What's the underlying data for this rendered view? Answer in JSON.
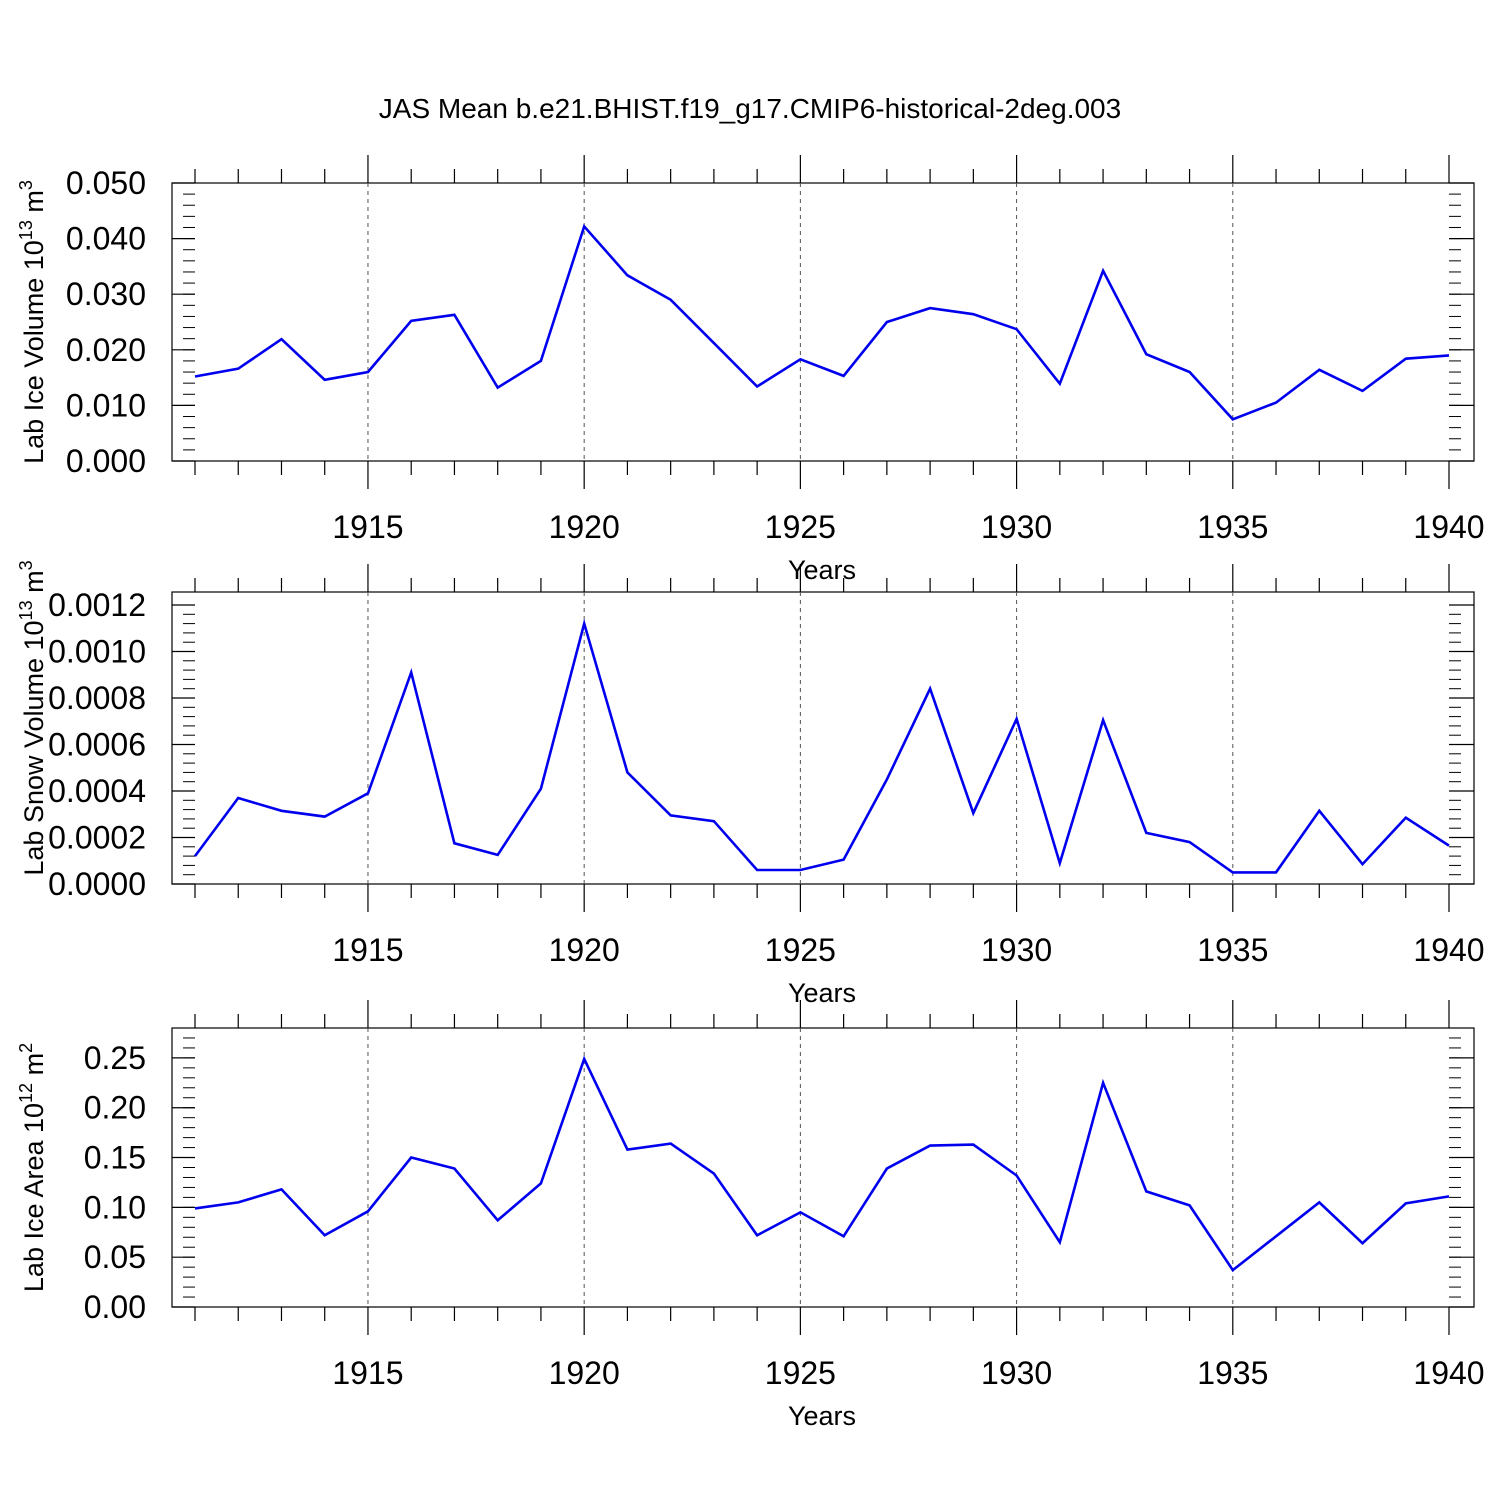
{
  "title": "JAS Mean b.e21.BHIST.f19_g17.CMIP6-historical-2deg.003",
  "line_color": "#0000ee",
  "chart_data": [
    {
      "type": "line",
      "ylabel_main": "Lab Ice Volume 10",
      "ylabel_exp": "13",
      "ylabel_unit": " m",
      "ylabel_unit_exp": "3",
      "xlabel": "Years",
      "xlim": [
        1911,
        1940
      ],
      "ylim": [
        0,
        0.05
      ],
      "yticks": [
        "0.000",
        "0.010",
        "0.020",
        "0.030",
        "0.040",
        "0.050"
      ],
      "xticks": [
        "1915",
        "1920",
        "1925",
        "1930",
        "1935",
        "1940"
      ],
      "x": [
        1911,
        1912,
        1913,
        1914,
        1915,
        1916,
        1917,
        1918,
        1919,
        1920,
        1921,
        1922,
        1923,
        1924,
        1925,
        1926,
        1927,
        1928,
        1929,
        1930,
        1931,
        1932,
        1933,
        1934,
        1935,
        1936,
        1937,
        1938,
        1939,
        1940
      ],
      "values": [
        0.0152,
        0.0166,
        0.0219,
        0.0146,
        0.016,
        0.0252,
        0.0263,
        0.0132,
        0.018,
        0.0422,
        0.0334,
        0.029,
        0.0212,
        0.0134,
        0.0183,
        0.0153,
        0.025,
        0.0275,
        0.0264,
        0.0237,
        0.0139,
        0.0342,
        0.0192,
        0.016,
        0.0075,
        0.0105,
        0.0164,
        0.0126,
        0.0184,
        0.019
      ]
    },
    {
      "type": "line",
      "ylabel_main": "Lab Snow Volume 10",
      "ylabel_exp": "13",
      "ylabel_unit": " m",
      "ylabel_unit_exp": "3",
      "xlabel": "Years",
      "xlim": [
        1911,
        1940
      ],
      "ylim": [
        0,
        0.0012
      ],
      "yticks": [
        "0.0000",
        "0.0002",
        "0.0004",
        "0.0006",
        "0.0008",
        "0.0010",
        "0.0012"
      ],
      "xticks": [
        "1915",
        "1920",
        "1925",
        "1930",
        "1935",
        "1940"
      ],
      "x": [
        1911,
        1912,
        1913,
        1914,
        1915,
        1916,
        1917,
        1918,
        1919,
        1920,
        1921,
        1922,
        1923,
        1924,
        1925,
        1926,
        1927,
        1928,
        1929,
        1930,
        1931,
        1932,
        1933,
        1934,
        1935,
        1936,
        1937,
        1938,
        1939,
        1940
      ],
      "values": [
        0.00012,
        0.00037,
        0.000315,
        0.00029,
        0.00039,
        0.00091,
        0.000175,
        0.000125,
        0.00041,
        0.00112,
        0.00048,
        0.000295,
        0.00027,
        6e-05,
        6e-05,
        0.000105,
        0.00045,
        0.00084,
        0.000305,
        0.00071,
        9e-05,
        0.000705,
        0.00022,
        0.00018,
        5e-05,
        5e-05,
        0.000315,
        8.5e-05,
        0.000285,
        0.000165
      ]
    },
    {
      "type": "line",
      "ylabel_main": "Lab Ice Area 10",
      "ylabel_exp": "12",
      "ylabel_unit": " m",
      "ylabel_unit_exp": "2",
      "xlabel": "Years",
      "xlim": [
        1911,
        1940
      ],
      "ylim": [
        0,
        0.28
      ],
      "yticks": [
        "0.00",
        "0.05",
        "0.10",
        "0.15",
        "0.20",
        "0.25"
      ],
      "xticks": [
        "1915",
        "1920",
        "1925",
        "1930",
        "1935",
        "1940"
      ],
      "x": [
        1911,
        1912,
        1913,
        1914,
        1915,
        1916,
        1917,
        1918,
        1919,
        1920,
        1921,
        1922,
        1923,
        1924,
        1925,
        1926,
        1927,
        1928,
        1929,
        1930,
        1931,
        1932,
        1933,
        1934,
        1935,
        1936,
        1937,
        1938,
        1939,
        1940
      ],
      "values": [
        0.099,
        0.105,
        0.118,
        0.072,
        0.096,
        0.15,
        0.139,
        0.087,
        0.124,
        0.249,
        0.158,
        0.164,
        0.134,
        0.072,
        0.095,
        0.071,
        0.139,
        0.162,
        0.163,
        0.132,
        0.065,
        0.225,
        0.116,
        0.102,
        0.037,
        0.071,
        0.105,
        0.064,
        0.104,
        0.111
      ]
    }
  ]
}
